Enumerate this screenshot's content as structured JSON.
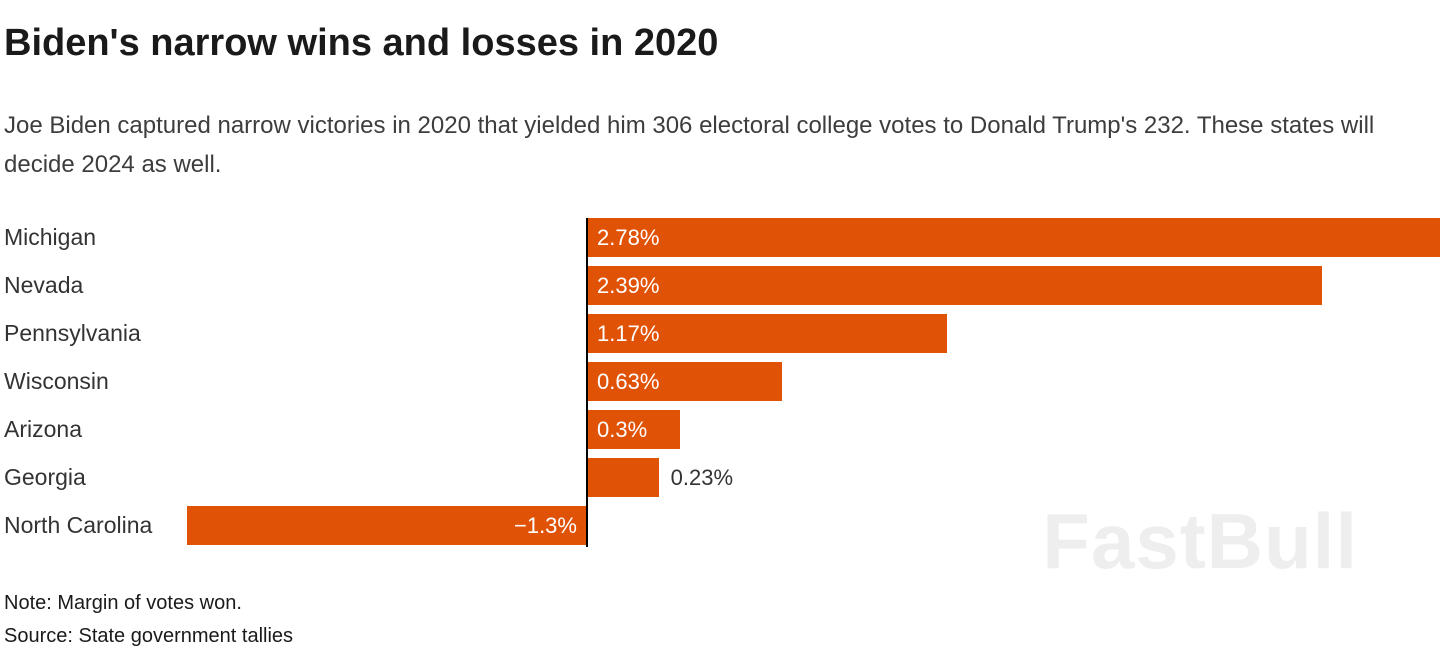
{
  "header": {
    "title": "Biden's narrow wins and losses in 2020",
    "subtitle": "Joe Biden captured narrow victories in 2020 that yielded him 306 electoral college votes to Donald Trump's 232. These states will decide 2024 as well."
  },
  "footer": {
    "note": "Note: Margin of votes won.",
    "source": "Source: State government tallies"
  },
  "watermark": "FastBull",
  "chart_data": {
    "type": "bar",
    "orientation": "horizontal",
    "title": "Biden's narrow wins and losses in 2020",
    "xlabel": "",
    "ylabel": "",
    "categories": [
      "Michigan",
      "Nevada",
      "Pennsylvania",
      "Wisconsin",
      "Arizona",
      "Georgia",
      "North Carolina"
    ],
    "values": [
      2.78,
      2.39,
      1.17,
      0.63,
      0.3,
      0.23,
      -1.3
    ],
    "value_labels": [
      "2.78%",
      "2.39%",
      "1.17%",
      "0.63%",
      "0.3%",
      "0.23%",
      "−1.3%"
    ],
    "label_inside": [
      true,
      true,
      true,
      true,
      true,
      false,
      true
    ],
    "xlim": [
      -1.3,
      2.78
    ],
    "bar_color": "#e05206",
    "axis_color": "#000000",
    "grid": false,
    "legend": "none"
  }
}
